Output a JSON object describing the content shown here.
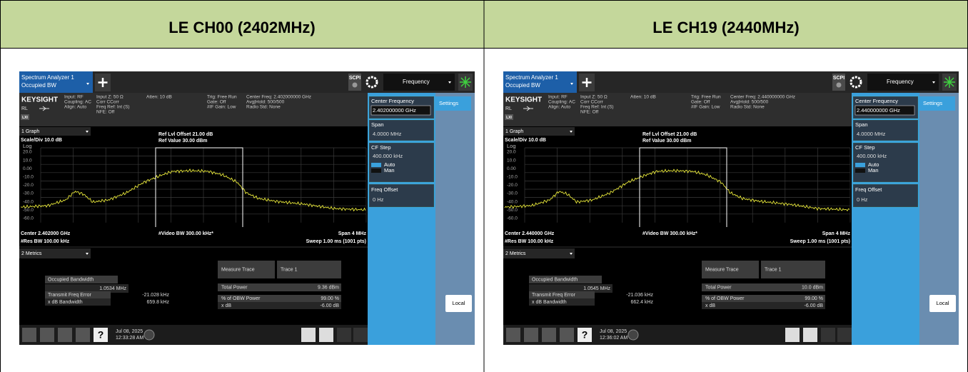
{
  "header": {
    "columns": [
      "LE CH00 (2402MHz)",
      "LE CH19 (2440MHz)"
    ]
  },
  "panels": [
    {
      "tab_title": "Spectrum Analyzer 1",
      "tab_sub": "Occupied BW",
      "scpi": "SCPI",
      "menu": "Frequency",
      "brand": "KEYSIGHT",
      "rl": "RL",
      "lxi": "LXI",
      "info": [
        [
          "Input: RF",
          "Coupling: AC",
          "Align: Auto"
        ],
        [
          "Input Z: 50 Ω",
          "Corr CCorr",
          "Freq Ref: Int (S)",
          "NFE: Off"
        ],
        [
          "Atten: 10 dB"
        ],
        [
          "Trig: Free Run",
          "Gate: Off",
          "#IF Gain: Low"
        ],
        [
          "Center Freq: 2.402000000 GHz",
          "Avg|Hold: 500/500",
          "Radio Std: None"
        ]
      ],
      "graph_menu": "1 Graph",
      "scale": "Scale/Div 10.0 dB",
      "offset": "Ref Lvl Offset 21.00 dB",
      "ref": "Ref Value 30.00 dBm",
      "log": "Log",
      "ylabels": [
        "20.0",
        "10.0",
        "0.00",
        "-10.0",
        "-20.0",
        "-30.0",
        "-40.0",
        "-50.0",
        "-60.0"
      ],
      "center": "Center 2.402000 GHz",
      "rbw": "#Res BW 100.00 kHz",
      "vbw": "#Video BW 300.00 kHz*",
      "span": "Span 4 MHz",
      "sweep": "Sweep 1.00 ms (1001 pts)",
      "metrics_menu": "2 Metrics",
      "obw_label": "Occupied Bandwidth",
      "obw_value": "1.0534 MHz",
      "tfe_label": "Transmit Freq Error",
      "tfe_value": "-21.028 kHz",
      "xdbbw_label": "x dB Bandwidth",
      "xdbbw_value": "659.8 kHz",
      "mt_label": "Measure Trace",
      "mt_value": "Trace 1",
      "tp_label": "Total Power",
      "tp_value": "9.36 dBm",
      "pobw_label": "% of OBW Power",
      "pobw_value": "99.00 %",
      "xdb_label": "x dB",
      "xdb_value": "-6.00 dB",
      "sk_cf": "Center Frequency",
      "sk_cf_value": "2.402000000 GHz",
      "sk_span": "Span",
      "sk_span_value": "4.0000 MHz",
      "sk_step": "CF Step",
      "sk_step_value": "400.000 kHz",
      "sk_auto": "Auto",
      "sk_man": "Man",
      "sk_offset": "Freq Offset",
      "sk_offset_value": "0 Hz",
      "settings": "Settings",
      "local": "Local",
      "date": "Jul 08, 2025",
      "time": "12:33:28 AM"
    },
    {
      "tab_title": "Spectrum Analyzer 1",
      "tab_sub": "Occupied BW",
      "scpi": "SCPI",
      "menu": "Frequency",
      "brand": "KEYSIGHT",
      "rl": "RL",
      "lxi": "LXI",
      "info": [
        [
          "Input: RF",
          "Coupling: AC",
          "Align: Auto"
        ],
        [
          "Input Z: 50 Ω",
          "Corr CCorr",
          "Freq Ref: Int (S)",
          "NFE: Off"
        ],
        [
          "Atten: 10 dB"
        ],
        [
          "Trig: Free Run",
          "Gate: Off",
          "#IF Gain: Low"
        ],
        [
          "Center Freq: 2.440000000 GHz",
          "Avg|Hold: 500/500",
          "Radio Std: None"
        ]
      ],
      "graph_menu": "1 Graph",
      "scale": "Scale/Div 10.0 dB",
      "offset": "Ref Lvl Offset 21.00 dB",
      "ref": "Ref Value 30.00 dBm",
      "log": "Log",
      "ylabels": [
        "20.0",
        "10.0",
        "0.00",
        "-10.0",
        "-20.0",
        "-30.0",
        "-40.0",
        "-50.0",
        "-60.0"
      ],
      "center": "Center 2.440000 GHz",
      "rbw": "#Res BW 100.00 kHz",
      "vbw": "#Video BW 300.00 kHz*",
      "span": "Span 4 MHz",
      "sweep": "Sweep 1.00 ms (1001 pts)",
      "metrics_menu": "2 Metrics",
      "obw_label": "Occupied Bandwidth",
      "obw_value": "1.0545 MHz",
      "tfe_label": "Transmit Freq Error",
      "tfe_value": "-21.036 kHz",
      "xdbbw_label": "x dB Bandwidth",
      "xdbbw_value": "662.4 kHz",
      "mt_label": "Measure Trace",
      "mt_value": "Trace 1",
      "tp_label": "Total Power",
      "tp_value": "10.0 dBm",
      "pobw_label": "% of OBW Power",
      "pobw_value": "99.00 %",
      "xdb_label": "x dB",
      "xdb_value": "-6.00 dB",
      "sk_cf": "Center Frequency",
      "sk_cf_value": "2.440000000 GHz",
      "sk_span": "Span",
      "sk_span_value": "4.0000 MHz",
      "sk_step": "CF Step",
      "sk_step_value": "400.000 kHz",
      "sk_auto": "Auto",
      "sk_man": "Man",
      "sk_offset": "Freq Offset",
      "sk_offset_value": "0 Hz",
      "settings": "Settings",
      "local": "Local",
      "date": "Jul 08, 2025",
      "time": "12:36:02 AM"
    }
  ]
}
